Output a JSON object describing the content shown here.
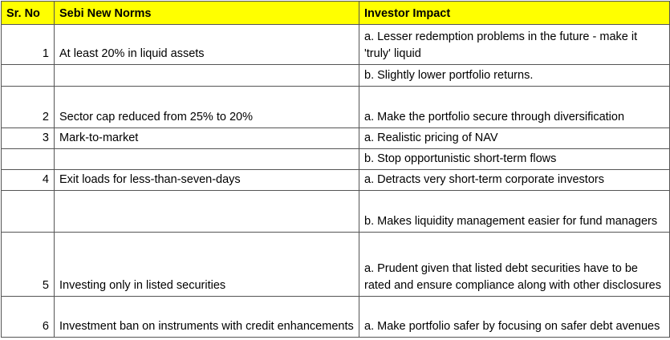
{
  "table": {
    "header": [
      "Sr. No",
      "Sebi New Norms",
      "Investor Impact"
    ],
    "rows": [
      [
        "1",
        "At least 20% in liquid assets",
        "a. Lesser redemption problems in the future - make it 'truly' liquid"
      ],
      [
        null,
        null,
        "b. Slightly lower portfolio returns."
      ],
      [
        "2",
        "Sector cap reduced from 25% to 20%",
        "a. Make the portfolio secure through diversification"
      ],
      [
        "3",
        "Mark-to-market",
        "a. Realistic pricing of NAV"
      ],
      [
        null,
        null,
        "b. Stop opportunistic short-term flows"
      ],
      [
        "4",
        "Exit loads for less-than-seven-days",
        "a. Detracts very short-term corporate investors"
      ],
      [
        null,
        null,
        "b. Makes liquidity management easier for fund managers"
      ],
      [
        "5",
        "Investing only in listed securities",
        "a. Prudent given that listed debt securities have to be rated and ensure compliance along with other disclosures"
      ],
      [
        "6",
        "Investment ban on instruments with credit enhancements",
        "a. Make portfolio safer by focusing on safer debt avenues"
      ]
    ]
  }
}
